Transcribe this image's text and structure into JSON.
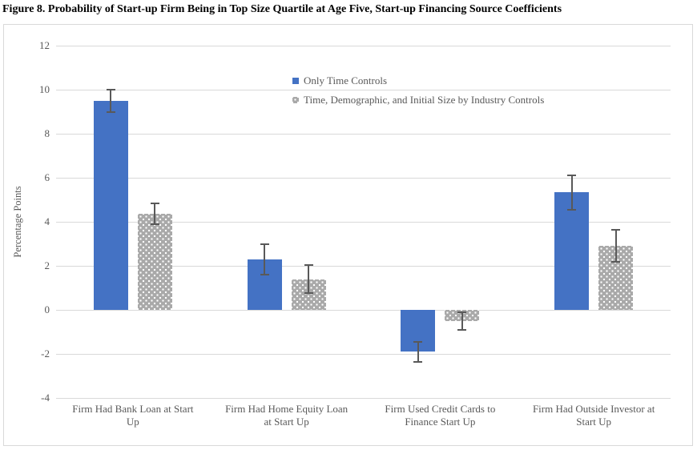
{
  "figure_title": "Figure 8. Probability of Start-up Firm Being in Top Size Quartile at Age Five, Start-up Financing Source Coefficients",
  "chart_data": {
    "type": "bar",
    "title": "Figure 8. Probability of Start-up Firm Being in Top Size Quartile at Age Five, Start-up Financing Source Coefficients",
    "xlabel": "",
    "ylabel": "Percentage Points",
    "ylim": [
      -4,
      12
    ],
    "ytick_interval": 2,
    "yticks": [
      12,
      10,
      8,
      6,
      4,
      2,
      0,
      -2,
      -4
    ],
    "grid": true,
    "legend_position": "top-center",
    "error_bars": true,
    "categories": [
      "Firm Had Bank Loan at Start\nUp",
      "Firm Had Home Equity Loan\nat Start Up",
      "Firm Used Credit Cards to\nFinance Start Up",
      "Firm Had Outside Investor at\nStart Up"
    ],
    "series": [
      {
        "name": "Only Time Controls",
        "color": "#4472C4",
        "pattern": "solid",
        "values": [
          9.5,
          2.3,
          -1.9,
          5.35
        ],
        "error_low": [
          9.0,
          1.6,
          -2.35,
          4.55
        ],
        "error_high": [
          10.0,
          3.0,
          -1.45,
          6.1
        ]
      },
      {
        "name": "Time, Demographic, and Initial Size by Industry Controls",
        "color": "#A6A6A6",
        "pattern": "dotted",
        "values": [
          4.35,
          1.4,
          -0.5,
          2.9
        ],
        "error_low": [
          3.9,
          0.75,
          -0.9,
          2.2
        ],
        "error_high": [
          4.85,
          2.05,
          -0.1,
          3.65
        ]
      }
    ]
  },
  "colors": {
    "series1": "#4472C4",
    "series2": "#A6A6A6",
    "gridline": "#D9D9D9",
    "axis_text": "#595959",
    "error_bar": "#595959",
    "chart_border": "#D9D9D9",
    "title_text": "#000000"
  }
}
